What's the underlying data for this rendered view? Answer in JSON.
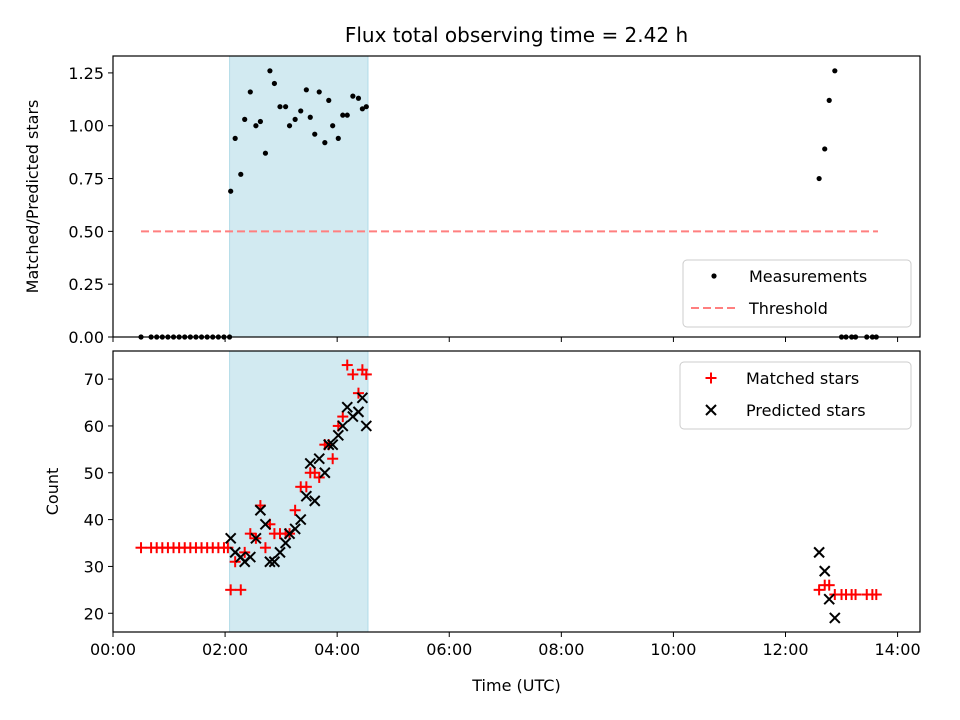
{
  "chart_data": [
    {
      "type": "scatter",
      "title": "Flux total observing time = 2.42 h",
      "xlabel": "",
      "ylabel": "Matched/Predicted stars",
      "xlim": [
        0.0,
        14.4
      ],
      "ylim": [
        0.0,
        1.33
      ],
      "xticks": [
        0,
        2,
        4,
        6,
        8,
        10,
        12,
        14
      ],
      "xtick_labels": [
        "",
        "",
        "",
        "",
        "",
        "",
        "",
        ""
      ],
      "yticks": [
        0.0,
        0.25,
        0.5,
        0.75,
        1.0,
        1.25
      ],
      "ytick_labels": [
        "0.00",
        "0.25",
        "0.50",
        "0.75",
        "1.00",
        "1.25"
      ],
      "shaded_span": [
        2.08,
        4.55
      ],
      "shaded_color": "#add8e6",
      "threshold": {
        "name": "Threshold",
        "y": 0.5,
        "x": [
          0.5,
          13.65
        ],
        "color": "#ff7f7f"
      },
      "legend_position": "lower-right",
      "series": [
        {
          "name": "Measurements",
          "color": "#000000",
          "marker": "dot",
          "x": [
            0.5,
            0.68,
            0.78,
            0.88,
            0.98,
            1.08,
            1.18,
            1.28,
            1.38,
            1.48,
            1.58,
            1.68,
            1.78,
            1.88,
            1.98,
            2.08,
            2.1,
            2.18,
            2.28,
            2.35,
            2.45,
            2.55,
            2.63,
            2.72,
            2.8,
            2.88,
            2.98,
            3.08,
            3.15,
            3.25,
            3.35,
            3.45,
            3.52,
            3.6,
            3.68,
            3.78,
            3.85,
            3.92,
            4.02,
            4.1,
            4.18,
            4.28,
            4.38,
            4.45,
            4.52,
            12.6,
            12.7,
            12.78,
            12.88,
            13.0,
            13.08,
            13.18,
            13.25,
            13.45,
            13.55,
            13.62
          ],
          "y": [
            0.0,
            0.0,
            0.0,
            0.0,
            0.0,
            0.0,
            0.0,
            0.0,
            0.0,
            0.0,
            0.0,
            0.0,
            0.0,
            0.0,
            0.0,
            0.0,
            0.69,
            0.94,
            0.77,
            1.03,
            1.16,
            1.0,
            1.02,
            0.87,
            1.26,
            1.2,
            1.09,
            1.09,
            1.0,
            1.03,
            1.07,
            1.17,
            1.04,
            0.96,
            1.16,
            0.92,
            1.12,
            1.0,
            0.94,
            1.05,
            1.05,
            1.14,
            1.13,
            1.08,
            1.09,
            0.75,
            0.89,
            1.12,
            1.26,
            0.0,
            0.0,
            0.0,
            0.0,
            0.0,
            0.0,
            0.0
          ]
        }
      ]
    },
    {
      "type": "scatter",
      "title": "",
      "xlabel": "Time (UTC)",
      "ylabel": "Count",
      "xlim": [
        0.0,
        14.4
      ],
      "ylim": [
        16,
        76
      ],
      "xticks": [
        0,
        2,
        4,
        6,
        8,
        10,
        12,
        14
      ],
      "xtick_labels": [
        "00:00",
        "02:00",
        "04:00",
        "06:00",
        "08:00",
        "10:00",
        "12:00",
        "14:00"
      ],
      "yticks": [
        20,
        30,
        40,
        50,
        60,
        70
      ],
      "ytick_labels": [
        "20",
        "30",
        "40",
        "50",
        "60",
        "70"
      ],
      "shaded_span": [
        2.08,
        4.55
      ],
      "shaded_color": "#add8e6",
      "legend_position": "upper-right",
      "series": [
        {
          "name": "Matched stars",
          "color": "#ff0000",
          "marker": "plus",
          "x": [
            0.5,
            0.68,
            0.78,
            0.88,
            0.98,
            1.08,
            1.18,
            1.28,
            1.38,
            1.48,
            1.58,
            1.68,
            1.78,
            1.88,
            1.98,
            2.05,
            2.1,
            2.18,
            2.28,
            2.35,
            2.45,
            2.55,
            2.63,
            2.72,
            2.8,
            2.88,
            2.98,
            3.08,
            3.15,
            3.25,
            3.35,
            3.45,
            3.52,
            3.6,
            3.68,
            3.78,
            3.85,
            3.92,
            4.02,
            4.1,
            4.18,
            4.28,
            4.38,
            4.45,
            4.52,
            12.6,
            12.7,
            12.78,
            12.88,
            13.0,
            13.08,
            13.18,
            13.25,
            13.45,
            13.55,
            13.62
          ],
          "y": [
            34,
            34,
            34,
            34,
            34,
            34,
            34,
            34,
            34,
            34,
            34,
            34,
            34,
            34,
            34,
            34,
            25,
            31,
            25,
            33,
            37,
            36,
            43,
            34,
            39,
            37,
            37,
            37,
            37,
            42,
            47,
            47,
            50,
            50,
            49,
            56,
            56,
            53,
            60,
            62,
            73,
            71,
            67,
            72,
            71,
            25,
            26,
            26,
            24,
            24,
            24,
            24,
            24,
            24,
            24,
            24
          ]
        },
        {
          "name": "Predicted stars",
          "color": "#000000",
          "marker": "x",
          "x": [
            2.1,
            2.18,
            2.28,
            2.35,
            2.45,
            2.55,
            2.63,
            2.72,
            2.8,
            2.88,
            2.98,
            3.08,
            3.15,
            3.25,
            3.35,
            3.45,
            3.52,
            3.6,
            3.68,
            3.78,
            3.85,
            3.92,
            4.02,
            4.1,
            4.18,
            4.28,
            4.38,
            4.45,
            4.52,
            12.6,
            12.7,
            12.78,
            12.88
          ],
          "y": [
            36,
            33,
            32,
            31,
            32,
            36,
            42,
            39,
            31,
            31,
            33,
            35,
            37,
            38,
            40,
            45,
            52,
            44,
            53,
            50,
            56,
            56,
            58,
            60,
            64,
            62,
            63,
            66,
            60,
            33,
            29,
            23,
            19
          ]
        }
      ]
    }
  ]
}
